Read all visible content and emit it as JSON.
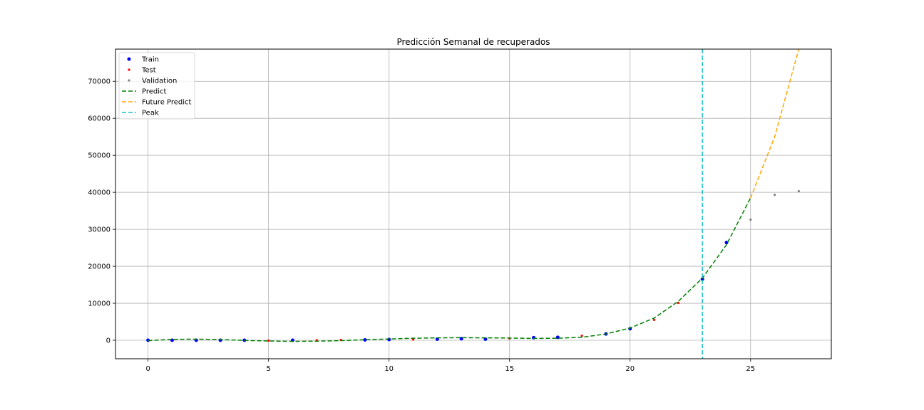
{
  "chart_data": {
    "type": "line",
    "title": "Predicción Semanal de recuperados",
    "xlabel": "",
    "ylabel": "",
    "xlim": [
      -1.35,
      28.35
    ],
    "ylim": [
      -5000,
      78700
    ],
    "xticks": [
      0,
      5,
      10,
      15,
      20,
      25
    ],
    "yticks": [
      0,
      10000,
      20000,
      30000,
      40000,
      50000,
      60000,
      70000
    ],
    "grid": true,
    "legend_position": "top-left",
    "peak_x": 23,
    "series": [
      {
        "name": "Train",
        "kind": "scatter",
        "color": "#0000ff",
        "x": [
          0,
          1,
          2,
          3,
          4,
          6,
          9,
          10,
          12,
          13,
          14,
          16,
          17,
          19,
          20,
          23,
          24
        ],
        "y": [
          0,
          0,
          0,
          0,
          0,
          0,
          100,
          200,
          300,
          400,
          300,
          700,
          800,
          1700,
          3100,
          16500,
          26400
        ]
      },
      {
        "name": "Test",
        "kind": "scatter",
        "color": "#ff0000",
        "x": [
          5,
          7,
          8,
          11,
          15,
          18,
          21,
          22
        ],
        "y": [
          -100,
          0,
          100,
          200,
          500,
          1200,
          5500,
          10100
        ]
      },
      {
        "name": "Validation",
        "kind": "scatter",
        "color": "#808080",
        "x": [
          25,
          26,
          27
        ],
        "y": [
          32600,
          39300,
          40300
        ]
      },
      {
        "name": "Predict",
        "kind": "line",
        "dash": "6,3",
        "color": "#008000",
        "x": [
          0,
          1,
          2,
          3,
          4,
          5,
          6,
          7,
          8,
          9,
          10,
          11,
          12,
          13,
          14,
          15,
          16,
          17,
          18,
          19,
          20,
          21,
          22,
          23,
          24,
          25
        ],
        "y": [
          -100,
          250,
          300,
          200,
          -50,
          -200,
          -300,
          -250,
          -100,
          150,
          350,
          550,
          650,
          700,
          650,
          600,
          500,
          550,
          800,
          1700,
          3300,
          6000,
          10500,
          16800,
          25800,
          38500
        ]
      },
      {
        "name": "Future Predict",
        "kind": "line",
        "dash": "6,3",
        "color": "#ffa500",
        "x": [
          25,
          26,
          27
        ],
        "y": [
          38500,
          55000,
          78700
        ]
      },
      {
        "name": "Peak",
        "kind": "vline",
        "dash": "6,3",
        "color": "#17becf"
      }
    ]
  }
}
